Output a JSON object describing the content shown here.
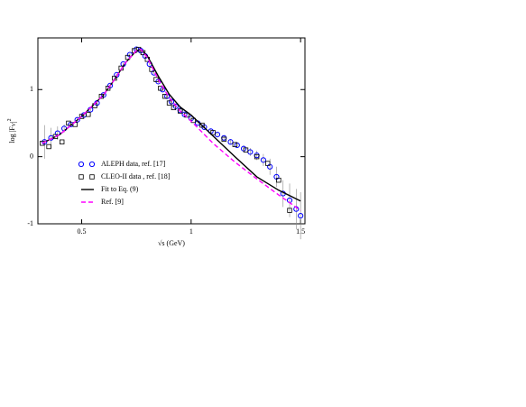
{
  "chart_data": {
    "type": "scatter",
    "x_label": "√s  (GeV)",
    "y_label": "log |F",
    "y_label_sub": "V",
    "y_label_sup": "2",
    "xlim": [
      0.3,
      1.52
    ],
    "xticks": [
      0.5,
      1,
      1.5
    ],
    "ylim": [
      -1,
      1.77
    ],
    "yticks": [
      -1,
      0,
      1
    ],
    "legend_loc": "lower left",
    "series": [
      {
        "name": "ALEPH data, ref. [17]",
        "color": "#0000ff",
        "marker": "circle",
        "x": [
          0.33,
          0.36,
          0.39,
          0.42,
          0.45,
          0.48,
          0.51,
          0.54,
          0.57,
          0.6,
          0.63,
          0.66,
          0.69,
          0.72,
          0.75,
          0.77,
          0.79,
          0.81,
          0.83,
          0.85,
          0.87,
          0.89,
          0.91,
          0.93,
          0.95,
          0.97,
          1.0,
          1.03,
          1.06,
          1.09,
          1.12,
          1.15,
          1.18,
          1.21,
          1.24,
          1.27,
          1.3,
          1.33,
          1.36,
          1.39,
          1.42,
          1.45,
          1.48,
          1.5
        ],
        "values": [
          0.22,
          0.28,
          0.35,
          0.42,
          0.48,
          0.55,
          0.62,
          0.7,
          0.8,
          0.92,
          1.06,
          1.22,
          1.38,
          1.52,
          1.6,
          1.58,
          1.5,
          1.38,
          1.25,
          1.12,
          1.0,
          0.9,
          0.82,
          0.75,
          0.69,
          0.63,
          0.57,
          0.5,
          0.44,
          0.38,
          0.33,
          0.28,
          0.22,
          0.17,
          0.12,
          0.07,
          0.02,
          -0.05,
          -0.15,
          -0.3,
          -0.55,
          -0.65,
          -0.78,
          -0.88
        ],
        "errors": [
          0.25,
          0.15,
          0.1,
          0.06,
          0.04,
          0.03,
          0.02,
          0.02,
          0.02,
          0.02,
          0.02,
          0.02,
          0.02,
          0.02,
          0.02,
          0.02,
          0.02,
          0.02,
          0.02,
          0.02,
          0.02,
          0.02,
          0.02,
          0.02,
          0.02,
          0.02,
          0.02,
          0.02,
          0.02,
          0.03,
          0.03,
          0.03,
          0.04,
          0.04,
          0.05,
          0.06,
          0.07,
          0.09,
          0.12,
          0.15,
          0.2,
          0.25,
          0.3,
          0.35
        ]
      },
      {
        "name": "CLEO-II data , ref. [18]",
        "color": "#000000",
        "marker": "square",
        "x": [
          0.32,
          0.35,
          0.38,
          0.41,
          0.44,
          0.47,
          0.5,
          0.53,
          0.56,
          0.59,
          0.62,
          0.65,
          0.68,
          0.71,
          0.74,
          0.76,
          0.78,
          0.8,
          0.82,
          0.84,
          0.86,
          0.88,
          0.9,
          0.92,
          0.95,
          0.98,
          1.01,
          1.05,
          1.1,
          1.15,
          1.2,
          1.25,
          1.3,
          1.35,
          1.4,
          1.45
        ],
        "values": [
          0.2,
          0.15,
          0.3,
          0.22,
          0.5,
          0.48,
          0.6,
          0.63,
          0.76,
          0.9,
          1.02,
          1.17,
          1.32,
          1.48,
          1.58,
          1.6,
          1.55,
          1.45,
          1.3,
          1.15,
          1.02,
          0.9,
          0.8,
          0.73,
          0.68,
          0.62,
          0.54,
          0.47,
          0.36,
          0.26,
          0.18,
          0.1,
          0.0,
          -0.1,
          -0.35,
          -0.8
        ]
      },
      {
        "name": "Fit to Eq. (9)",
        "color": "#000000",
        "marker": "line",
        "x": [
          0.32,
          0.4,
          0.5,
          0.6,
          0.65,
          0.7,
          0.75,
          0.77,
          0.8,
          0.85,
          0.9,
          0.95,
          1.0,
          1.1,
          1.2,
          1.3,
          1.4,
          1.5
        ],
        "values": [
          0.2,
          0.33,
          0.6,
          0.92,
          1.15,
          1.4,
          1.58,
          1.6,
          1.5,
          1.2,
          0.93,
          0.74,
          0.62,
          0.31,
          0.0,
          -0.3,
          -0.5,
          -0.66
        ]
      },
      {
        "name": "Ref. [9]",
        "color": "#ff00ff",
        "marker": "dashed",
        "x": [
          0.32,
          0.4,
          0.5,
          0.6,
          0.65,
          0.7,
          0.75,
          0.77,
          0.8,
          0.85,
          0.9,
          0.95,
          1.0,
          1.1,
          1.2,
          1.3,
          1.4,
          1.5
        ],
        "values": [
          0.2,
          0.33,
          0.6,
          0.92,
          1.15,
          1.4,
          1.58,
          1.6,
          1.48,
          1.15,
          0.88,
          0.68,
          0.53,
          0.2,
          -0.08,
          -0.33,
          -0.57,
          -0.8
        ]
      }
    ]
  }
}
